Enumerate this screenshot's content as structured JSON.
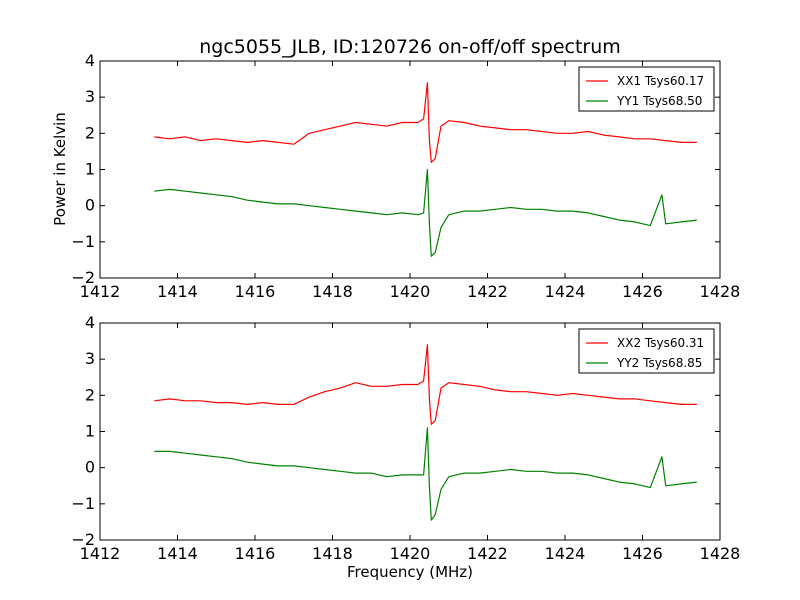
{
  "chart_data": [
    {
      "type": "line",
      "title": "ngc5055_JLB, ID:120726 on-off/off spectrum",
      "xlabel": "",
      "ylabel": "Power in Kelvin",
      "xlim": [
        1412,
        1428
      ],
      "ylim": [
        -2,
        4
      ],
      "xticks": [
        1412,
        1414,
        1416,
        1418,
        1420,
        1422,
        1424,
        1426,
        1428
      ],
      "yticks": [
        -2,
        -1,
        0,
        1,
        2,
        3,
        4
      ],
      "grid": false,
      "legend_position": "top-right",
      "series": [
        {
          "name": "XX1 Tsys60.17",
          "color": "#ff0000",
          "x": [
            1413.4,
            1413.8,
            1414.2,
            1414.6,
            1415.0,
            1415.4,
            1415.8,
            1416.2,
            1416.6,
            1417.0,
            1417.4,
            1417.8,
            1418.2,
            1418.6,
            1419.0,
            1419.4,
            1419.8,
            1420.2,
            1420.35,
            1420.45,
            1420.5,
            1420.55,
            1420.65,
            1420.8,
            1421.0,
            1421.4,
            1421.8,
            1422.2,
            1422.6,
            1423.0,
            1423.4,
            1423.8,
            1424.2,
            1424.6,
            1425.0,
            1425.4,
            1425.8,
            1426.2,
            1426.6,
            1427.0,
            1427.4
          ],
          "y": [
            1.9,
            1.85,
            1.9,
            1.8,
            1.85,
            1.8,
            1.75,
            1.8,
            1.75,
            1.7,
            2.0,
            2.1,
            2.2,
            2.3,
            2.25,
            2.2,
            2.3,
            2.3,
            2.4,
            3.4,
            1.8,
            1.2,
            1.3,
            2.2,
            2.35,
            2.3,
            2.2,
            2.15,
            2.1,
            2.1,
            2.05,
            2.0,
            2.0,
            2.05,
            1.95,
            1.9,
            1.85,
            1.85,
            1.8,
            1.75,
            1.75
          ]
        },
        {
          "name": "YY1 Tsys68.50",
          "color": "#008000",
          "x": [
            1413.4,
            1413.8,
            1414.2,
            1414.6,
            1415.0,
            1415.4,
            1415.8,
            1416.2,
            1416.6,
            1417.0,
            1417.4,
            1417.8,
            1418.2,
            1418.6,
            1419.0,
            1419.4,
            1419.8,
            1420.2,
            1420.35,
            1420.45,
            1420.5,
            1420.55,
            1420.65,
            1420.8,
            1421.0,
            1421.4,
            1421.8,
            1422.2,
            1422.6,
            1423.0,
            1423.4,
            1423.8,
            1424.2,
            1424.6,
            1425.0,
            1425.4,
            1425.8,
            1426.2,
            1426.5,
            1426.6,
            1427.0,
            1427.4
          ],
          "y": [
            0.4,
            0.45,
            0.4,
            0.35,
            0.3,
            0.25,
            0.15,
            0.1,
            0.05,
            0.05,
            0.0,
            -0.05,
            -0.1,
            -0.15,
            -0.2,
            -0.25,
            -0.2,
            -0.25,
            -0.2,
            1.0,
            -0.5,
            -1.4,
            -1.3,
            -0.6,
            -0.25,
            -0.15,
            -0.15,
            -0.1,
            -0.05,
            -0.1,
            -0.1,
            -0.15,
            -0.15,
            -0.2,
            -0.3,
            -0.4,
            -0.45,
            -0.55,
            0.3,
            -0.5,
            -0.45,
            -0.4
          ]
        }
      ]
    },
    {
      "type": "line",
      "title": "",
      "xlabel": "Frequency (MHz)",
      "ylabel": "",
      "xlim": [
        1412,
        1428
      ],
      "ylim": [
        -2,
        4
      ],
      "xticks": [
        1412,
        1414,
        1416,
        1418,
        1420,
        1422,
        1424,
        1426,
        1428
      ],
      "yticks": [
        -2,
        -1,
        0,
        1,
        2,
        3,
        4
      ],
      "grid": false,
      "legend_position": "top-right",
      "series": [
        {
          "name": "XX2 Tsys60.31",
          "color": "#ff0000",
          "x": [
            1413.4,
            1413.8,
            1414.2,
            1414.6,
            1415.0,
            1415.4,
            1415.8,
            1416.2,
            1416.6,
            1417.0,
            1417.4,
            1417.8,
            1418.2,
            1418.6,
            1419.0,
            1419.4,
            1419.8,
            1420.2,
            1420.35,
            1420.45,
            1420.5,
            1420.55,
            1420.65,
            1420.8,
            1421.0,
            1421.4,
            1421.8,
            1422.2,
            1422.6,
            1423.0,
            1423.4,
            1423.8,
            1424.2,
            1424.6,
            1425.0,
            1425.4,
            1425.8,
            1426.2,
            1426.6,
            1427.0,
            1427.4
          ],
          "y": [
            1.85,
            1.9,
            1.85,
            1.85,
            1.8,
            1.8,
            1.75,
            1.8,
            1.75,
            1.75,
            1.95,
            2.1,
            2.2,
            2.35,
            2.25,
            2.25,
            2.3,
            2.3,
            2.4,
            3.4,
            1.9,
            1.2,
            1.3,
            2.2,
            2.35,
            2.3,
            2.25,
            2.15,
            2.1,
            2.1,
            2.05,
            2.0,
            2.05,
            2.0,
            1.95,
            1.9,
            1.9,
            1.85,
            1.8,
            1.75,
            1.75
          ]
        },
        {
          "name": "YY2 Tsys68.85",
          "color": "#008000",
          "x": [
            1413.4,
            1413.8,
            1414.2,
            1414.6,
            1415.0,
            1415.4,
            1415.8,
            1416.2,
            1416.6,
            1417.0,
            1417.4,
            1417.8,
            1418.2,
            1418.6,
            1419.0,
            1419.4,
            1419.8,
            1420.2,
            1420.35,
            1420.45,
            1420.5,
            1420.55,
            1420.65,
            1420.8,
            1421.0,
            1421.4,
            1421.8,
            1422.2,
            1422.6,
            1423.0,
            1423.4,
            1423.8,
            1424.2,
            1424.6,
            1425.0,
            1425.4,
            1425.8,
            1426.2,
            1426.5,
            1426.6,
            1427.0,
            1427.4
          ],
          "y": [
            0.45,
            0.45,
            0.4,
            0.35,
            0.3,
            0.25,
            0.15,
            0.1,
            0.05,
            0.05,
            0.0,
            -0.05,
            -0.1,
            -0.15,
            -0.15,
            -0.25,
            -0.2,
            -0.2,
            -0.2,
            1.1,
            -0.5,
            -1.45,
            -1.3,
            -0.6,
            -0.25,
            -0.15,
            -0.15,
            -0.1,
            -0.05,
            -0.1,
            -0.1,
            -0.15,
            -0.15,
            -0.2,
            -0.3,
            -0.4,
            -0.45,
            -0.55,
            0.3,
            -0.5,
            -0.45,
            -0.4
          ]
        }
      ]
    }
  ]
}
